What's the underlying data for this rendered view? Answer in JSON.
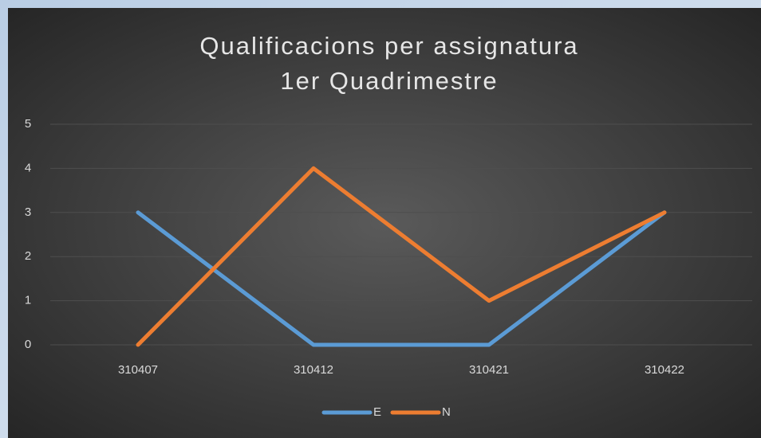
{
  "chart_data": {
    "type": "line",
    "title": "Qualificacions per assignatura",
    "subtitle": "1er Quadrimestre",
    "categories": [
      "310407",
      "310412",
      "310421",
      "310422"
    ],
    "series": [
      {
        "name": "E",
        "color": "#5b9bd5",
        "values": [
          3,
          0,
          0,
          3
        ]
      },
      {
        "name": "N",
        "color": "#ed7d31",
        "values": [
          0,
          4,
          1,
          3
        ]
      }
    ],
    "ylim": [
      0,
      5
    ],
    "yticks": [
      0,
      1,
      2,
      3,
      4,
      5
    ],
    "grid": true,
    "legend": "bottom"
  }
}
